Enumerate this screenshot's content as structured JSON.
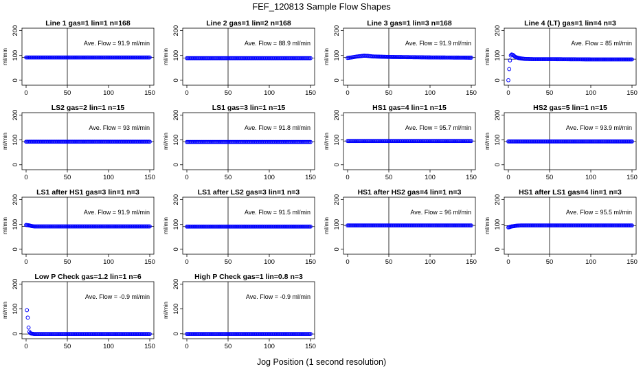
{
  "title": "FEF_120813  Sample Flow Shapes",
  "xlabel": "Jog Position (1 second resolution)",
  "chart_data": {
    "type": "scatter",
    "xlim": [
      0,
      150
    ],
    "ylim": [
      -20,
      210
    ],
    "xticks": [
      0,
      50,
      100,
      150
    ],
    "yticks": [
      0,
      100,
      200
    ],
    "ylabel": "ml/min",
    "vline_x": 50,
    "point_color": "#0000ff",
    "panels": [
      {
        "title": "Line 1 gas=1 lin=1 n=168",
        "annotation": "Ave. Flow =  91.9  ml/min",
        "mean": 91.9,
        "series": [
          {
            "x": [
              0,
              150
            ],
            "y": [
              91.9,
              91.9
            ],
            "kind": "flat"
          }
        ]
      },
      {
        "title": "Line 2 gas=1 lin=2 n=168",
        "annotation": "Ave. Flow =  88.9  ml/min",
        "mean": 88.9,
        "series": [
          {
            "x": [
              0,
              150
            ],
            "y": [
              88.9,
              88.9
            ],
            "kind": "flat"
          }
        ]
      },
      {
        "title": "Line 3 gas=1 lin=3 n=168",
        "annotation": "Ave. Flow =  91.9  ml/min",
        "mean": 91.9,
        "series": [
          {
            "x": [
              0,
              5,
              10,
              15,
              20,
              25,
              30,
              50,
              100,
              150
            ],
            "y": [
              90,
              92,
              95,
              97,
              99,
              98,
              96,
              94,
              92,
              91
            ],
            "kind": "points"
          }
        ]
      },
      {
        "title": "Line 4 (LT) gas=1 lin=4 n=3",
        "annotation": "Ave. Flow =  85  ml/min",
        "mean": 85,
        "series": [
          {
            "x": [
              0,
              1,
              2,
              3,
              4,
              5,
              6,
              7,
              8,
              10,
              12,
              15,
              20,
              30,
              50,
              100,
              150
            ],
            "y": [
              0,
              45,
              80,
              100,
              104,
              103,
              101,
              98,
              95,
              92,
              90,
              88,
              86,
              85,
              85,
              84,
              84
            ],
            "kind": "points"
          }
        ]
      },
      {
        "title": "LS2 gas=2 lin=1 n=15",
        "annotation": "Ave. Flow =  93  ml/min",
        "mean": 93,
        "series": [
          {
            "x": [
              0,
              150
            ],
            "y": [
              93,
              93
            ],
            "kind": "flat"
          }
        ]
      },
      {
        "title": "LS1 gas=3 lin=1 n=15",
        "annotation": "Ave. Flow =  91.8  ml/min",
        "mean": 91.8,
        "series": [
          {
            "x": [
              0,
              150
            ],
            "y": [
              91.8,
              91.8
            ],
            "kind": "flat"
          }
        ]
      },
      {
        "title": "HS1 gas=4 lin=1 n=15",
        "annotation": "Ave. Flow =  95.7  ml/min",
        "mean": 95.7,
        "series": [
          {
            "x": [
              0,
              150
            ],
            "y": [
              95.7,
              95.7
            ],
            "kind": "flat"
          }
        ]
      },
      {
        "title": "HS2 gas=5 lin=1 n=15",
        "annotation": "Ave. Flow =  93.9  ml/min",
        "mean": 93.9,
        "series": [
          {
            "x": [
              0,
              150
            ],
            "y": [
              93.9,
              93.9
            ],
            "kind": "flat"
          }
        ]
      },
      {
        "title": "LS1 after HS1 gas=3 lin=1 n=3",
        "annotation": "Ave. Flow =  91.9  ml/min",
        "mean": 91.9,
        "series": [
          {
            "x": [
              0,
              2,
              4,
              6,
              8,
              10,
              20,
              50,
              100,
              150
            ],
            "y": [
              98,
              97,
              96,
              94,
              93,
              92,
              92,
              92,
              92,
              92
            ],
            "kind": "points"
          }
        ]
      },
      {
        "title": "LS1 after LS2 gas=3 lin=1 n=3",
        "annotation": "Ave. Flow =  91.5  ml/min",
        "mean": 91.5,
        "series": [
          {
            "x": [
              0,
              150
            ],
            "y": [
              91.5,
              91.5
            ],
            "kind": "flat"
          }
        ]
      },
      {
        "title": "HS1 after HS2 gas=4 lin=1 n=3",
        "annotation": "Ave. Flow =  96  ml/min",
        "mean": 96,
        "series": [
          {
            "x": [
              0,
              150
            ],
            "y": [
              96,
              96
            ],
            "kind": "flat"
          }
        ]
      },
      {
        "title": "HS1 after LS1 gas=4 lin=1 n=3",
        "annotation": "Ave. Flow =  95.5  ml/min",
        "mean": 95.5,
        "series": [
          {
            "x": [
              0,
              2,
              4,
              6,
              8,
              10,
              15,
              20,
              50,
              100,
              150
            ],
            "y": [
              88,
              90,
              92,
              93,
              94,
              95,
              96,
              96,
              96,
              96,
              96
            ],
            "kind": "points"
          }
        ]
      },
      {
        "title": "Low P Check gas=1.2 lin=1 n=6",
        "annotation": "Ave. Flow =  -0.9  ml/min",
        "mean": -0.9,
        "series": [
          {
            "x": [
              1,
              2,
              3,
              4,
              5,
              6,
              8,
              10,
              20,
              50,
              100,
              150
            ],
            "y": [
              95,
              65,
              25,
              8,
              3,
              1,
              0,
              -1,
              -1,
              -1,
              -1,
              -1
            ],
            "kind": "points"
          }
        ]
      },
      {
        "title": "High P Check gas=1 lin=0.8 n=3",
        "annotation": "Ave. Flow =  -0.9  ml/min",
        "mean": -0.9,
        "series": [
          {
            "x": [
              0,
              150
            ],
            "y": [
              -0.9,
              -0.9
            ],
            "kind": "flat"
          }
        ]
      }
    ]
  }
}
